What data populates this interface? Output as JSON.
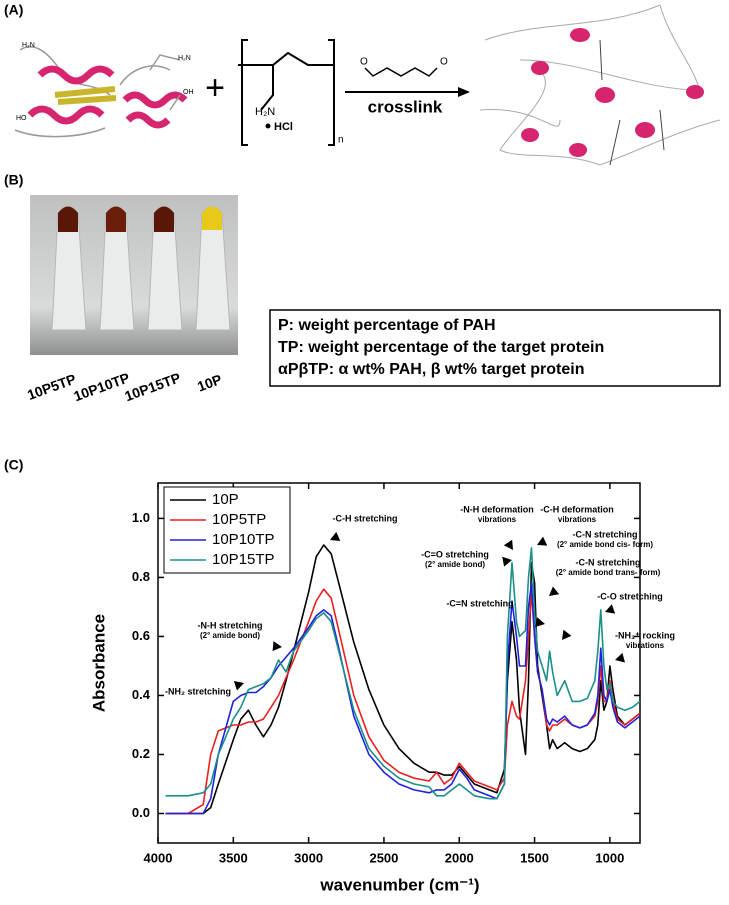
{
  "panels": {
    "a": {
      "label": "(A)",
      "protein_labels": [
        "H₂N",
        "H₂N",
        "HO",
        "OH"
      ],
      "plus": "+",
      "polymer": {
        "amine": "H₂N",
        "salt": "HCl",
        "repeat": "n"
      },
      "aldehyde_labels": [
        "O",
        "O"
      ],
      "reaction": "crosslink"
    },
    "b": {
      "label": "(B)",
      "samples": [
        "10P5TP",
        "10P10TP",
        "10P15TP",
        "10P"
      ],
      "legend_lines": [
        "P: weight percentage of PAH",
        "TP: weight percentage of the target protein",
        "αPβTP: α wt% PAH, β wt% target protein"
      ]
    },
    "c": {
      "label": "(C)"
    }
  },
  "chart_data": {
    "type": "line",
    "x_label": "wavenumber (cm⁻¹)",
    "y_label": "Absorbance",
    "xlim": [
      4000,
      800
    ],
    "ylim": [
      -0.1,
      1.12
    ],
    "xticks": [
      4000,
      3500,
      3000,
      2500,
      2000,
      1500,
      1000
    ],
    "yticks": [
      {
        "value": 0,
        "label": "0.0"
      },
      {
        "value": 0.2,
        "label": "0.2"
      },
      {
        "value": 0.4,
        "label": "0.4"
      },
      {
        "value": 0.6,
        "label": "0.6"
      },
      {
        "value": 0.8,
        "label": "0.8"
      },
      {
        "value": 1.0,
        "label": "1.0"
      }
    ],
    "legend": "upper left",
    "x": [
      3950,
      3800,
      3700,
      3650,
      3600,
      3500,
      3450,
      3400,
      3350,
      3300,
      3250,
      3200,
      3150,
      3100,
      3000,
      2950,
      2900,
      2850,
      2800,
      2700,
      2600,
      2500,
      2400,
      2300,
      2200,
      2150,
      2100,
      2050,
      2000,
      1950,
      1900,
      1800,
      1750,
      1700,
      1680,
      1650,
      1620,
      1600,
      1560,
      1540,
      1520,
      1500,
      1480,
      1450,
      1420,
      1400,
      1380,
      1350,
      1300,
      1250,
      1200,
      1150,
      1100,
      1080,
      1060,
      1040,
      1020,
      1000,
      980,
      950,
      900,
      850,
      800
    ],
    "series": [
      {
        "name": "10P",
        "color": "#000000",
        "values": [
          0,
          0,
          0,
          0.02,
          0.1,
          0.25,
          0.32,
          0.35,
          0.3,
          0.26,
          0.3,
          0.36,
          0.45,
          0.55,
          0.75,
          0.87,
          0.91,
          0.88,
          0.78,
          0.58,
          0.42,
          0.3,
          0.22,
          0.17,
          0.14,
          0.14,
          0.13,
          0.13,
          0.16,
          0.13,
          0.1,
          0.08,
          0.07,
          0.15,
          0.45,
          0.65,
          0.52,
          0.35,
          0.2,
          0.45,
          0.85,
          0.78,
          0.5,
          0.4,
          0.3,
          0.22,
          0.25,
          0.22,
          0.24,
          0.22,
          0.21,
          0.22,
          0.25,
          0.3,
          0.45,
          0.35,
          0.38,
          0.5,
          0.42,
          0.33,
          0.3,
          0.32,
          0.34
        ]
      },
      {
        "name": "10P5TP",
        "color": "#e8201f",
        "values": [
          0,
          0,
          0.03,
          0.2,
          0.28,
          0.3,
          0.3,
          0.31,
          0.31,
          0.32,
          0.36,
          0.4,
          0.46,
          0.52,
          0.65,
          0.72,
          0.76,
          0.73,
          0.62,
          0.4,
          0.26,
          0.18,
          0.14,
          0.12,
          0.11,
          0.14,
          0.1,
          0.12,
          0.17,
          0.14,
          0.11,
          0.09,
          0.08,
          0.12,
          0.3,
          0.38,
          0.33,
          0.32,
          0.45,
          0.6,
          0.75,
          0.6,
          0.48,
          0.42,
          0.3,
          0.28,
          0.3,
          0.3,
          0.32,
          0.3,
          0.29,
          0.3,
          0.33,
          0.38,
          0.5,
          0.38,
          0.38,
          0.45,
          0.38,
          0.32,
          0.3,
          0.32,
          0.34
        ]
      },
      {
        "name": "10P10TP",
        "color": "#2222dd",
        "values": [
          0,
          0,
          0,
          0.05,
          0.2,
          0.38,
          0.4,
          0.41,
          0.41,
          0.43,
          0.46,
          0.5,
          0.53,
          0.56,
          0.63,
          0.67,
          0.69,
          0.67,
          0.56,
          0.33,
          0.2,
          0.14,
          0.1,
          0.08,
          0.07,
          0.08,
          0.08,
          0.1,
          0.15,
          0.12,
          0.08,
          0.06,
          0.05,
          0.1,
          0.5,
          0.72,
          0.6,
          0.5,
          0.5,
          0.7,
          0.78,
          0.6,
          0.48,
          0.42,
          0.32,
          0.3,
          0.32,
          0.31,
          0.33,
          0.3,
          0.29,
          0.3,
          0.34,
          0.4,
          0.56,
          0.4,
          0.38,
          0.42,
          0.36,
          0.31,
          0.29,
          0.31,
          0.33
        ]
      },
      {
        "name": "10P15TP",
        "color": "#1b8f8a",
        "values": [
          0.06,
          0.06,
          0.07,
          0.1,
          0.2,
          0.32,
          0.36,
          0.42,
          0.43,
          0.44,
          0.46,
          0.52,
          0.48,
          0.55,
          0.62,
          0.66,
          0.68,
          0.65,
          0.55,
          0.35,
          0.22,
          0.16,
          0.12,
          0.1,
          0.09,
          0.06,
          0.06,
          0.08,
          0.1,
          0.08,
          0.06,
          0.05,
          0.05,
          0.1,
          0.6,
          0.85,
          0.65,
          0.6,
          0.62,
          0.8,
          0.9,
          0.68,
          0.55,
          0.5,
          0.45,
          0.55,
          0.48,
          0.4,
          0.45,
          0.38,
          0.38,
          0.39,
          0.45,
          0.55,
          0.69,
          0.5,
          0.42,
          0.44,
          0.38,
          0.36,
          0.35,
          0.36,
          0.38
        ]
      }
    ],
    "annotations": [
      [
        "-NH₂ stretching"
      ],
      [
        "-N-H stretching",
        "(2° amide bond)"
      ],
      [
        "-C-H stretching"
      ],
      [
        "-N-H deformation",
        "vibrations"
      ],
      [
        "-C=O stretching",
        "(2° amide bond)"
      ],
      [
        "-C-H deformation",
        "vibrations"
      ],
      [
        "-C-N stretching",
        "(2° amide bond cis- form)"
      ],
      [
        "-C-N stretching",
        "(2° amide bond trans- form)"
      ],
      [
        "-C=N stretching"
      ],
      [
        "-C-O stretching"
      ],
      [
        "-NH₃⁺ rocking",
        "vibrations"
      ]
    ]
  }
}
